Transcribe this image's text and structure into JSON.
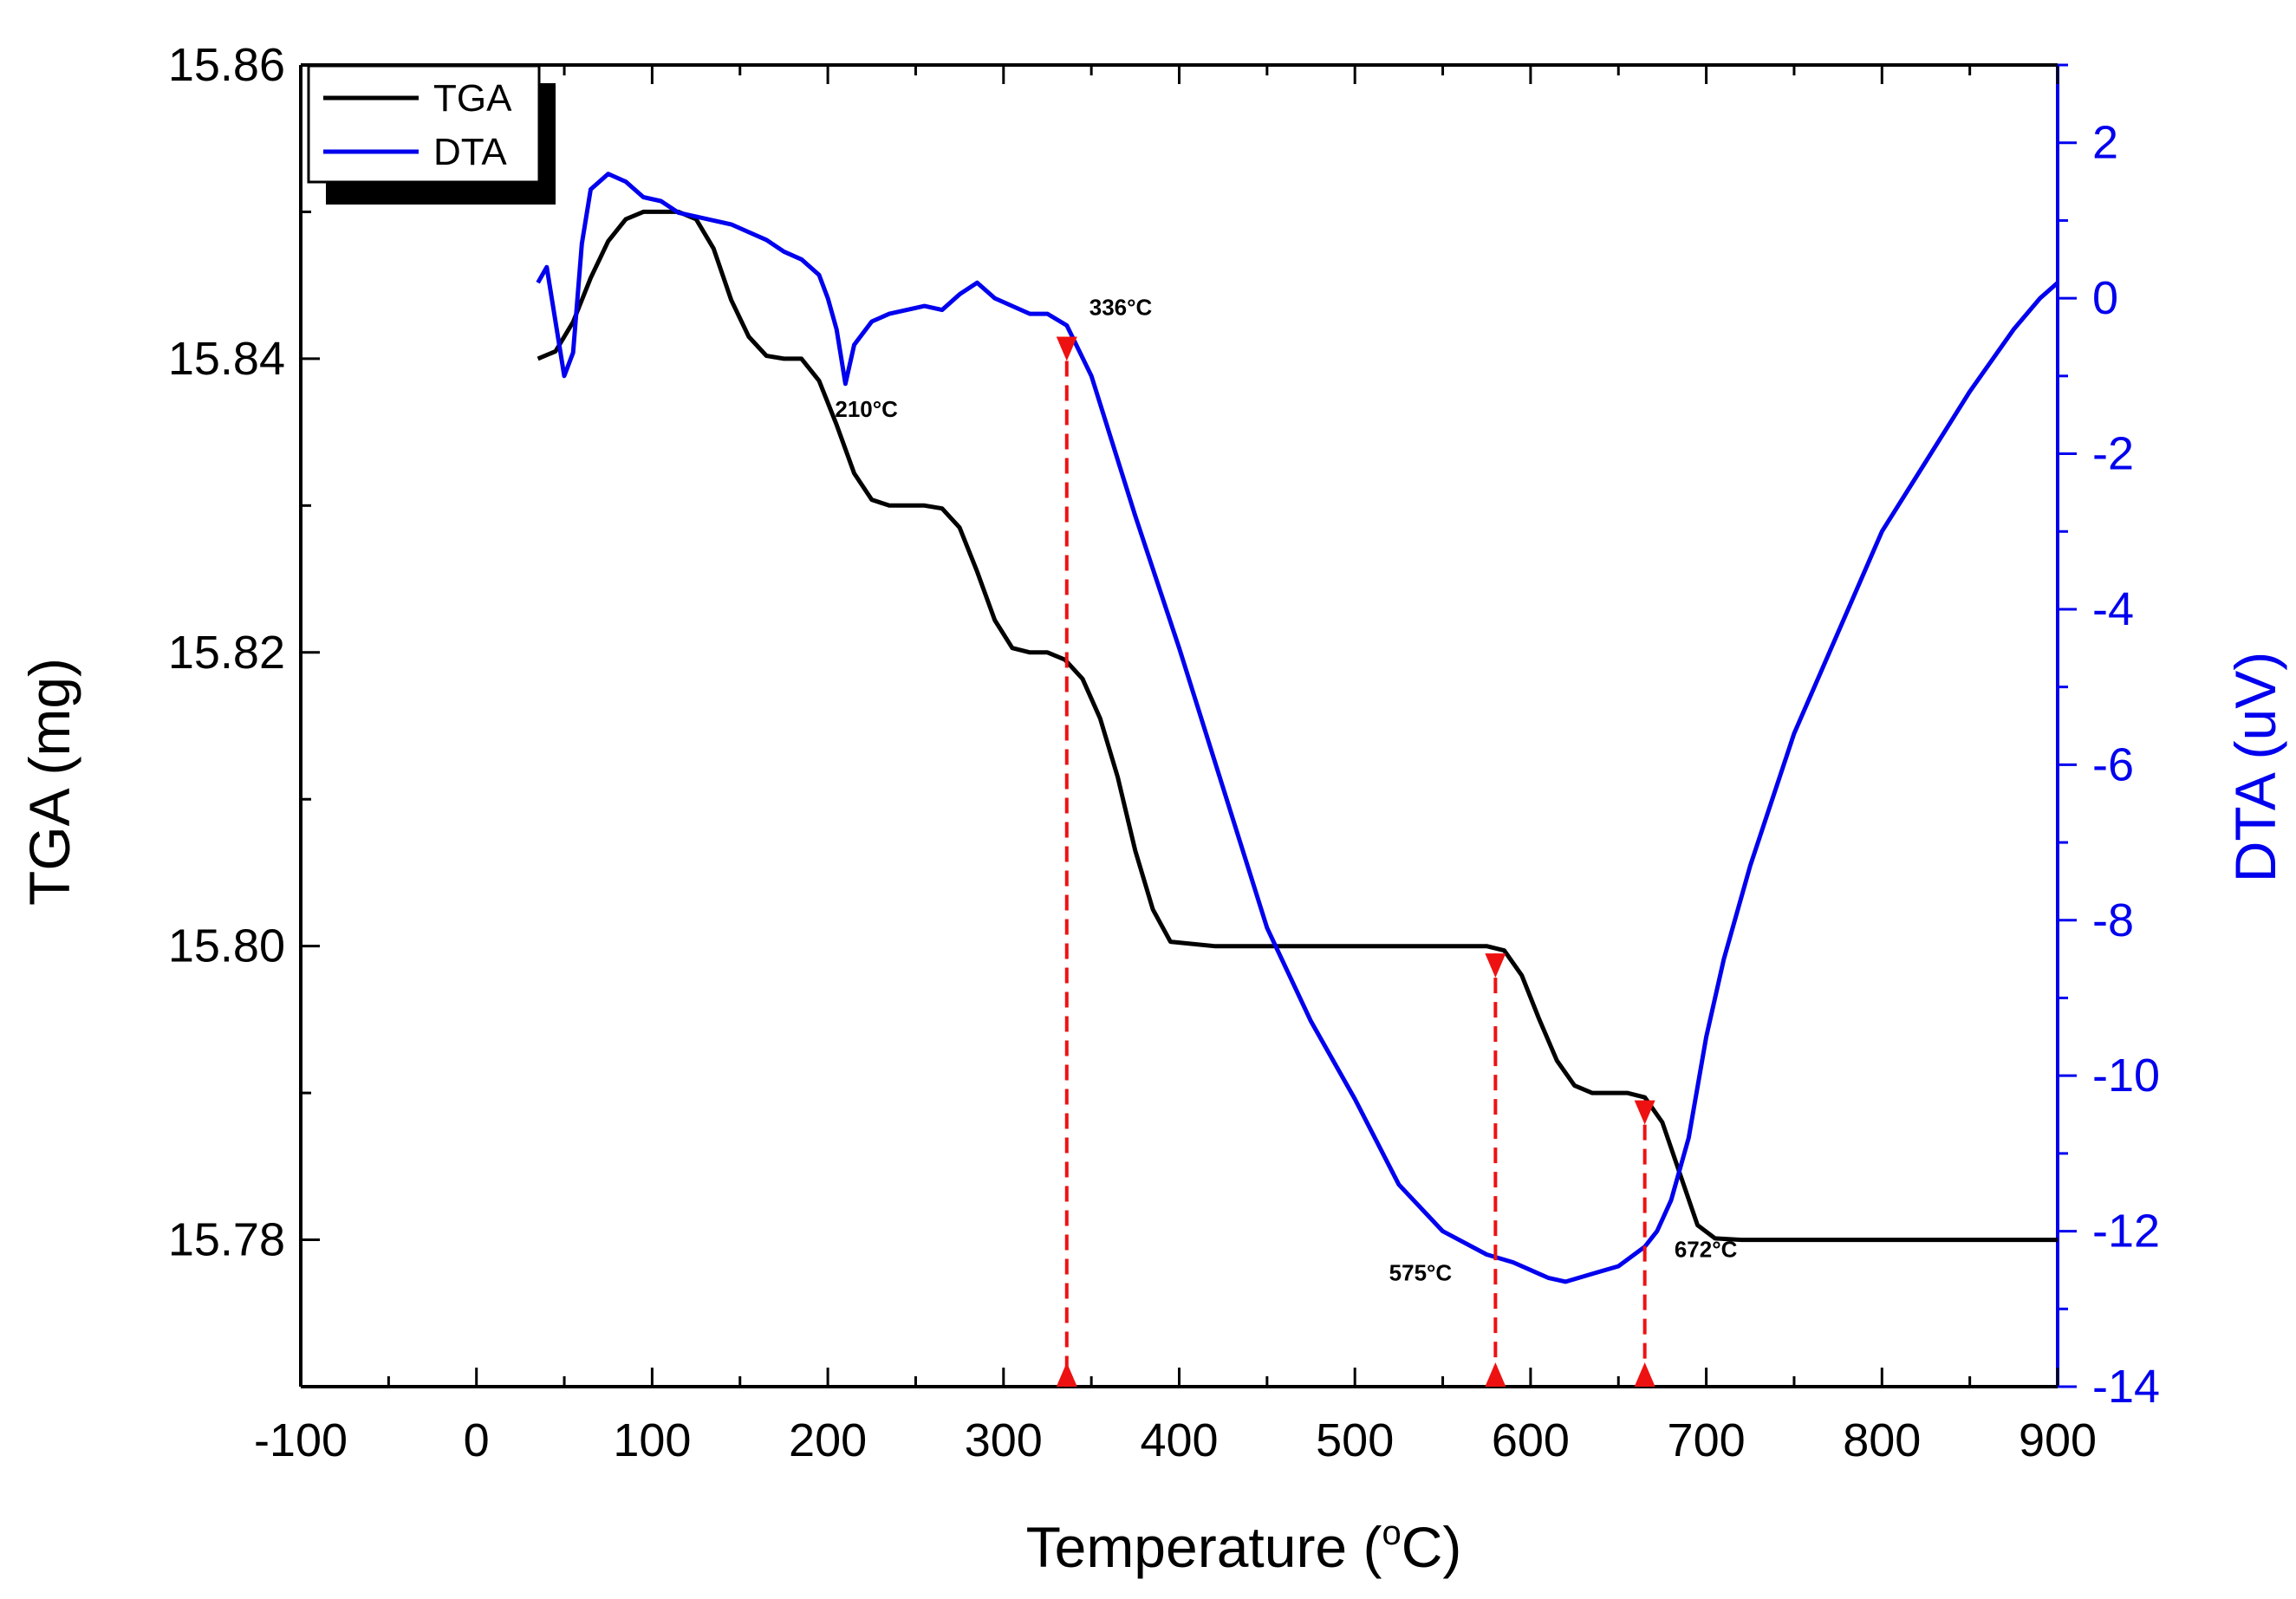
{
  "chart_data": {
    "type": "line",
    "title": "",
    "xlabel": "Temperature (",
    "xlabel_sup": "o",
    "xlabel_end": "C)",
    "ylabel_left": "TGA (mg)",
    "ylabel_right": "DTA (uV)",
    "xlim": [
      -100,
      900
    ],
    "ylim_left": [
      15.77,
      15.86
    ],
    "ylim_right": [
      -14,
      3
    ],
    "x_ticks": [
      "-100",
      "0",
      "100",
      "200",
      "300",
      "400",
      "500",
      "600",
      "700",
      "800",
      "900"
    ],
    "y_left_ticks": [
      "15.86",
      "15.84",
      "15.82",
      "15.80",
      "15.78"
    ],
    "y_right_ticks": [
      "2",
      "0",
      "-2",
      "-4",
      "-6",
      "-8",
      "-10",
      "-12",
      "-14"
    ],
    "legend": [
      {
        "name": "TGA",
        "color": "#000000"
      },
      {
        "name": "DTA",
        "color": "#0000ee"
      }
    ],
    "legend_position": "top-left",
    "series": [
      {
        "name": "TGA",
        "axis": "left",
        "color": "#000000",
        "x": [
          35,
          45,
          55,
          65,
          75,
          85,
          95,
          105,
          115,
          125,
          135,
          145,
          155,
          165,
          175,
          185,
          195,
          205,
          215,
          225,
          235,
          245,
          255,
          265,
          275,
          285,
          295,
          305,
          315,
          325,
          335,
          345,
          355,
          365,
          375,
          385,
          395,
          420,
          460,
          500,
          540,
          575,
          585,
          595,
          605,
          615,
          625,
          635,
          645,
          655,
          665,
          675,
          685,
          695,
          705,
          720,
          760,
          800,
          850,
          900
        ],
        "y": [
          15.84,
          15.8405,
          15.8425,
          15.8455,
          15.848,
          15.8495,
          15.85,
          15.85,
          15.85,
          15.8495,
          15.8475,
          15.844,
          15.8415,
          15.8402,
          15.84,
          15.84,
          15.8385,
          15.8355,
          15.8322,
          15.8304,
          15.83,
          15.83,
          15.83,
          15.8298,
          15.8285,
          15.8255,
          15.8222,
          15.8203,
          15.82,
          15.82,
          15.8195,
          15.8182,
          15.8155,
          15.8115,
          15.8065,
          15.8025,
          15.8003,
          15.8,
          15.8,
          15.8,
          15.8,
          15.8,
          15.7997,
          15.798,
          15.795,
          15.7922,
          15.7905,
          15.79,
          15.79,
          15.79,
          15.7897,
          15.788,
          15.7845,
          15.781,
          15.7801,
          15.78,
          15.78,
          15.78,
          15.78,
          15.78
        ]
      },
      {
        "name": "DTA",
        "axis": "right",
        "color": "#0000ee",
        "x": [
          35,
          40,
          45,
          50,
          55,
          60,
          65,
          75,
          85,
          95,
          105,
          115,
          125,
          135,
          145,
          155,
          165,
          175,
          185,
          195,
          200,
          205,
          210,
          215,
          225,
          235,
          245,
          255,
          265,
          275,
          285,
          295,
          305,
          315,
          325,
          336,
          350,
          375,
          400,
          425,
          450,
          475,
          500,
          525,
          550,
          575,
          590,
          600,
          610,
          620,
          635,
          650,
          665,
          672,
          680,
          690,
          700,
          710,
          725,
          750,
          775,
          800,
          825,
          850,
          875,
          890,
          900
        ],
        "y": [
          0.2,
          0.4,
          -0.3,
          -1.0,
          -0.7,
          0.7,
          1.4,
          1.6,
          1.5,
          1.3,
          1.25,
          1.1,
          1.05,
          1.0,
          0.95,
          0.85,
          0.75,
          0.6,
          0.5,
          0.3,
          0.0,
          -0.4,
          -1.1,
          -0.6,
          -0.3,
          -0.2,
          -0.15,
          -0.1,
          -0.15,
          0.05,
          0.2,
          0.0,
          -0.1,
          -0.2,
          -0.2,
          -0.35,
          -1.0,
          -2.8,
          -4.5,
          -6.3,
          -8.1,
          -9.3,
          -10.3,
          -11.4,
          -12.0,
          -12.3,
          -12.4,
          -12.5,
          -12.6,
          -12.65,
          -12.55,
          -12.45,
          -12.2,
          -12.0,
          -11.6,
          -10.8,
          -9.5,
          -8.5,
          -7.3,
          -5.6,
          -4.3,
          -3.0,
          -2.1,
          -1.2,
          -0.4,
          0.0,
          0.2
        ]
      }
    ],
    "annotations": [
      {
        "text": "210°C",
        "x": 210,
        "axis": "right",
        "y": -1.1
      },
      {
        "text": "336°C",
        "x": 336,
        "axis": "right",
        "y": -0.35
      },
      {
        "text": "575°C",
        "x": 575,
        "axis": "right",
        "y": -12.3
      },
      {
        "text": "672°C",
        "x": 672,
        "axis": "right",
        "y": -12.0
      }
    ],
    "markers": [
      {
        "x": 336,
        "tga": 15.8415
      },
      {
        "x": 580,
        "tga": 15.7995
      },
      {
        "x": 665,
        "tga": 15.7895
      }
    ]
  }
}
